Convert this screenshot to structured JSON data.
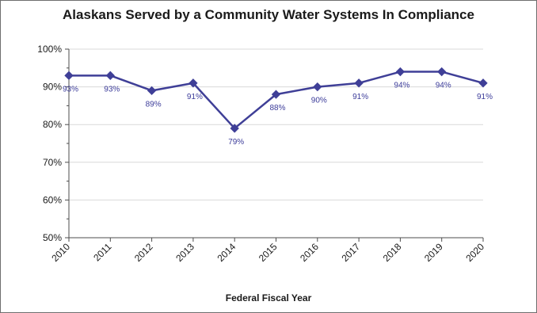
{
  "chart_data": {
    "type": "line",
    "title": "Alaskans Served by a Community Water Systems In Compliance",
    "xlabel": "Federal Fiscal Year",
    "ylabel": "",
    "categories": [
      "2010",
      "2011",
      "2012",
      "2013",
      "2014",
      "2015",
      "2016",
      "2017",
      "2018",
      "2019",
      "2020"
    ],
    "series": [
      {
        "values": [
          93,
          93,
          89,
          91,
          79,
          88,
          90,
          91,
          94,
          94,
          91
        ],
        "labels": [
          "93%",
          "93%",
          "89%",
          "91%",
          "79%",
          "88%",
          "90%",
          "91%",
          "94%",
          "94%",
          "91%"
        ]
      }
    ],
    "ylim": [
      50,
      100
    ],
    "yticks": [
      50,
      60,
      70,
      80,
      90,
      100
    ],
    "ytick_labels": [
      "50%",
      "60%",
      "70%",
      "80%",
      "90%",
      "100%"
    ],
    "grid": true,
    "legend": "none",
    "colors": {
      "line": "#3f3f97",
      "grid": "#d9d9d9",
      "axis": "#4d4d4d"
    }
  }
}
